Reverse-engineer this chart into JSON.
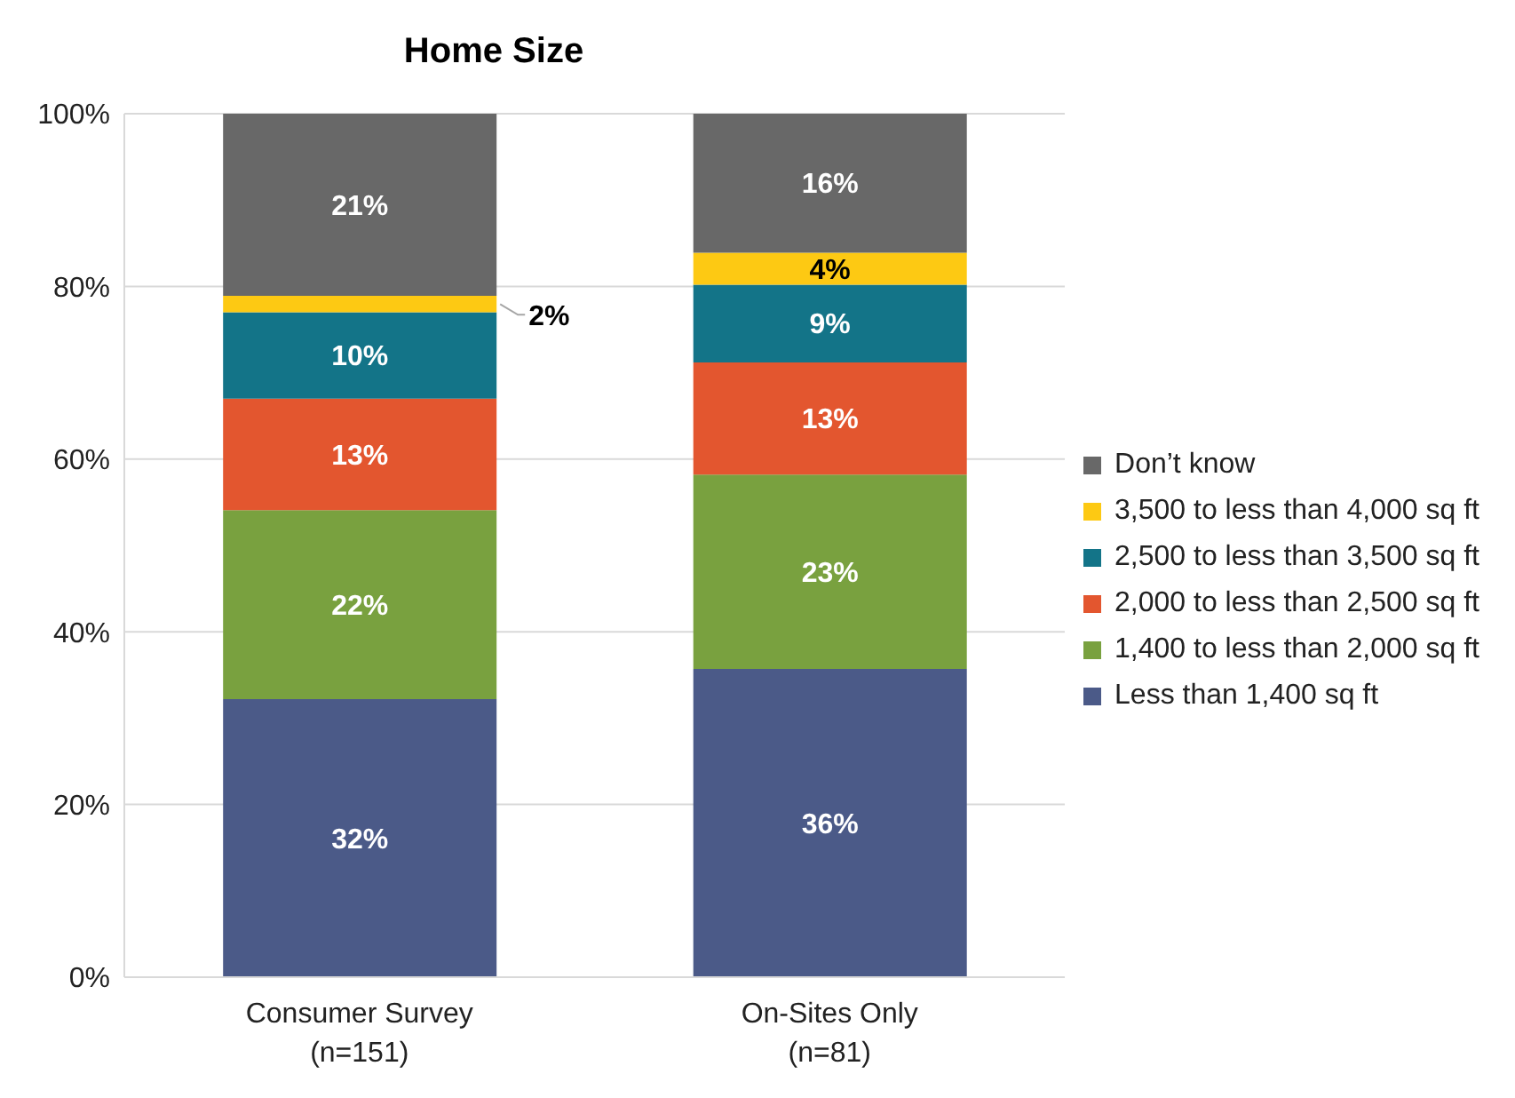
{
  "chart_data": {
    "type": "bar",
    "title": "Home Size",
    "stacked": true,
    "categories": [
      "Consumer Survey (n=151)",
      "On-Sites Only (n=81)"
    ],
    "series": [
      {
        "name": "Less than 1,400 sq ft",
        "color": "#4b5a88",
        "values": [
          32.2,
          35.7
        ],
        "value_labels": [
          "32%",
          "36%"
        ]
      },
      {
        "name": "1,400 to less than 2,000 sq ft",
        "color": "#79a13f",
        "values": [
          21.9,
          22.5
        ],
        "value_labels": [
          "22%",
          "23%"
        ]
      },
      {
        "name": "2,000 to less than 2,500 sq ft",
        "color": "#e3562f",
        "values": [
          12.9,
          13.0
        ],
        "value_labels": [
          "13%",
          "13%"
        ]
      },
      {
        "name": "2,500 to less than 3,500 sq ft",
        "color": "#137488",
        "values": [
          10.0,
          9.0
        ],
        "value_labels": [
          "10%",
          "9%"
        ]
      },
      {
        "name": "3,500 to less than 4,000 sq ft",
        "color": "#fdc913",
        "values": [
          1.9,
          3.7
        ],
        "value_labels": [
          "2%",
          "4%"
        ]
      },
      {
        "name": "Don’t know",
        "color": "#686868",
        "values": [
          21.1,
          16.1
        ],
        "value_labels": [
          "21%",
          "16%"
        ]
      }
    ],
    "ylim": [
      0,
      100
    ],
    "yticks": [
      {
        "value": 0,
        "label": "0%"
      },
      {
        "value": 20,
        "label": "20%"
      },
      {
        "value": 40,
        "label": "40%"
      },
      {
        "value": 60,
        "label": "60%"
      },
      {
        "value": 80,
        "label": "80%"
      },
      {
        "value": 100,
        "label": "100%"
      }
    ],
    "grid": "y",
    "legend": "right"
  }
}
